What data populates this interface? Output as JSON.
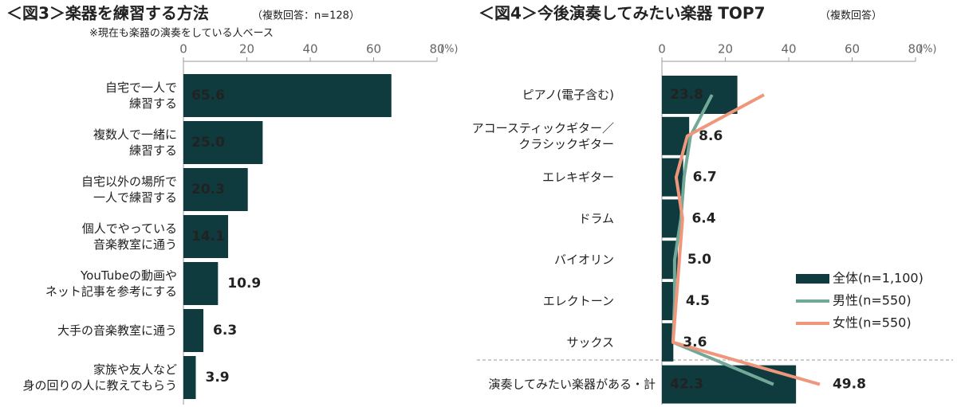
{
  "chart_data": [
    {
      "type": "bar",
      "title": "＜図3＞楽器を練習する方法",
      "subtitle": "（複数回答：n=128）",
      "note": "※現在も楽器の演奏をしている人ベース",
      "unit": "(%)",
      "categories": [
        "自宅で一人で\n練習する",
        "複数人で一緒に\n練習する",
        "自宅以外の場所で\n一人で練習する",
        "個人でやっている\n音楽教室に通う",
        "YouTubeの動画や\nネット記事を参考にする",
        "大手の音楽教室に通う",
        "家族や友人など\n身の回りの人に教えてもらう"
      ],
      "values": [
        65.6,
        25.0,
        20.3,
        14.1,
        10.9,
        6.3,
        3.9
      ],
      "value_labels": [
        "65.6",
        "25.0",
        "20.3",
        "14.1",
        "10.9",
        "6.3",
        "3.9"
      ],
      "color": "#0f3a3e",
      "xlim": [
        0,
        80
      ],
      "xticks": [
        0,
        20,
        40,
        60,
        80
      ]
    },
    {
      "type": "bar_line",
      "title": "＜図4＞今後演奏してみたい楽器 TOP7",
      "subtitle": "（複数回答）",
      "unit": "(%)",
      "categories": [
        "ピアノ(電子含む)",
        "アコースティックギター／\nクラシックギター",
        "エレキギター",
        "ドラム",
        "バイオリン",
        "エレクトーン",
        "サックス",
        "演奏してみたい楽器がある・計"
      ],
      "series": [
        {
          "name": "全体(n=1,100)",
          "type": "bar",
          "color": "#0f3a3e",
          "values": [
            23.8,
            8.6,
            6.7,
            6.4,
            5.0,
            4.5,
            3.6,
            42.3
          ],
          "value_labels": [
            "23.8",
            "8.6",
            "6.7",
            "6.4",
            "5.0",
            "4.5",
            "3.6",
            "42.3"
          ]
        },
        {
          "name": "男性(n=550)",
          "type": "line",
          "color": "#72a898",
          "values": [
            15.8,
            9,
            7,
            6,
            4,
            4,
            3.5,
            35.2
          ]
        },
        {
          "name": "女性(n=550)",
          "type": "line",
          "color": "#f0977b",
          "values": [
            32.2,
            8,
            4.5,
            6.5,
            5.5,
            4.5,
            3.5,
            49.8
          ]
        }
      ],
      "xlim": [
        0,
        80
      ],
      "xticks": [
        0,
        20,
        40,
        60,
        80
      ],
      "legend": "right"
    }
  ]
}
